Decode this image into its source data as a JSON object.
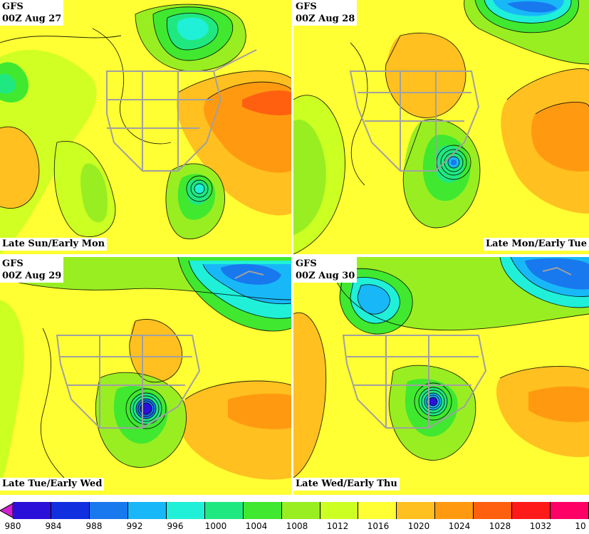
{
  "panels": [
    {
      "model": "GFS",
      "run": "00Z Aug 27",
      "period": "Late Sun/Early Mon"
    },
    {
      "model": "GFS",
      "run": "00Z Aug 28",
      "period": "Late Mon/Early Tue"
    },
    {
      "model": "GFS",
      "run": "00Z Aug 29",
      "period": "Late Tue/Early Wed"
    },
    {
      "model": "GFS",
      "run": "00Z Aug 30",
      "period": "Late Wed/Early Thu"
    }
  ],
  "legend": {
    "ticks": [
      "980",
      "984",
      "988",
      "992",
      "996",
      "1000",
      "1004",
      "1008",
      "1012",
      "1016",
      "1020",
      "1024",
      "1028",
      "1032",
      "10"
    ],
    "colors": [
      "#2a10d8",
      "#1030e0",
      "#1878ee",
      "#18b8f8",
      "#20f0d8",
      "#20e880",
      "#40e830",
      "#99ee22",
      "#ccff22",
      "#ffff33",
      "#ffc020",
      "#ff9a10",
      "#ff6010",
      "#ff1a1a",
      "#ff0066"
    ],
    "arrow_color": "#d020d0"
  }
}
